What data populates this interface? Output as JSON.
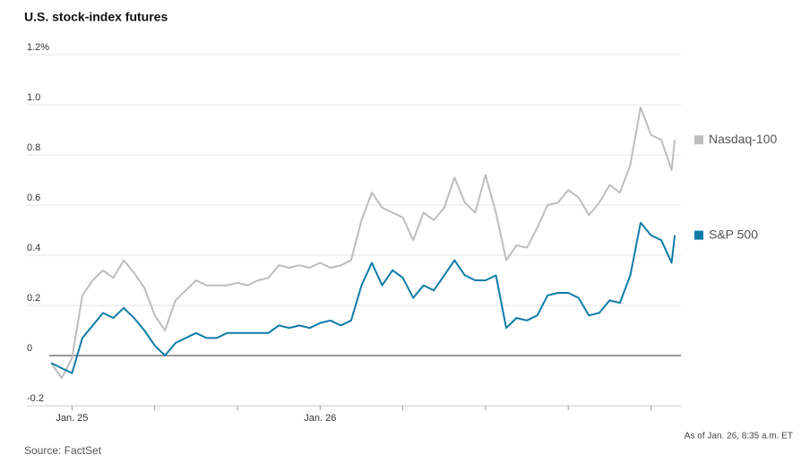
{
  "chart_data": {
    "type": "line",
    "title": "U.S. stock-index futures",
    "source": "Source: FactSet",
    "note": "As of Jan. 26, 8:35 a.m. ET",
    "x": [
      -2,
      -1,
      0,
      1,
      2,
      3,
      4,
      5,
      6,
      7,
      8,
      9,
      10,
      11,
      12,
      13,
      14,
      15,
      16,
      17,
      18,
      19,
      20,
      21,
      22,
      23,
      24,
      25,
      26,
      27,
      28,
      29,
      30,
      31,
      32,
      33,
      34,
      35,
      36,
      37,
      38,
      39,
      40,
      41,
      42,
      43,
      44,
      45,
      46,
      47,
      48,
      49,
      50,
      51,
      52,
      53,
      54,
      55,
      56,
      57,
      58,
      58.3
    ],
    "series": [
      {
        "name": "Nasdaq-100",
        "color": "#bdbdbd",
        "values": [
          -0.03,
          -0.09,
          -0.01,
          0.24,
          0.3,
          0.34,
          0.31,
          0.38,
          0.33,
          0.27,
          0.16,
          0.1,
          0.22,
          0.26,
          0.3,
          0.28,
          0.28,
          0.28,
          0.29,
          0.28,
          0.3,
          0.31,
          0.36,
          0.35,
          0.36,
          0.35,
          0.37,
          0.35,
          0.36,
          0.38,
          0.54,
          0.65,
          0.59,
          0.57,
          0.55,
          0.46,
          0.57,
          0.54,
          0.59,
          0.71,
          0.61,
          0.57,
          0.72,
          0.57,
          0.38,
          0.44,
          0.43,
          0.51,
          0.6,
          0.61,
          0.66,
          0.63,
          0.56,
          0.61,
          0.68,
          0.65,
          0.76,
          0.99,
          0.88,
          0.86,
          0.74,
          0.86
        ]
      },
      {
        "name": "S&P 500",
        "color": "#0f7ba6",
        "values": [
          -0.03,
          -0.05,
          -0.07,
          0.07,
          0.12,
          0.17,
          0.15,
          0.19,
          0.15,
          0.1,
          0.04,
          0.0,
          0.05,
          0.07,
          0.09,
          0.07,
          0.07,
          0.09,
          0.09,
          0.09,
          0.09,
          0.09,
          0.12,
          0.11,
          0.12,
          0.11,
          0.13,
          0.14,
          0.12,
          0.14,
          0.28,
          0.37,
          0.28,
          0.34,
          0.31,
          0.23,
          0.28,
          0.26,
          0.32,
          0.38,
          0.32,
          0.3,
          0.3,
          0.32,
          0.11,
          0.15,
          0.14,
          0.16,
          0.24,
          0.25,
          0.25,
          0.23,
          0.16,
          0.17,
          0.22,
          0.21,
          0.32,
          0.53,
          0.48,
          0.46,
          0.37,
          0.48
        ]
      }
    ],
    "xlim": [
      -2.2,
      58.9
    ],
    "xticks": [
      {
        "value": 0,
        "label": "Jan. 25"
      },
      {
        "value": 24,
        "label": "Jan. 26"
      }
    ],
    "xminorticks": [
      8,
      16,
      32,
      40,
      48,
      56
    ],
    "ylim": [
      -0.2,
      1.2
    ],
    "yticks": [
      -0.2,
      0,
      0.2,
      0.4,
      0.6,
      0.8,
      {
        "value": 1,
        "label": "1.0"
      },
      {
        "value": 1.2,
        "label": "1.2%"
      }
    ],
    "grid": true
  }
}
